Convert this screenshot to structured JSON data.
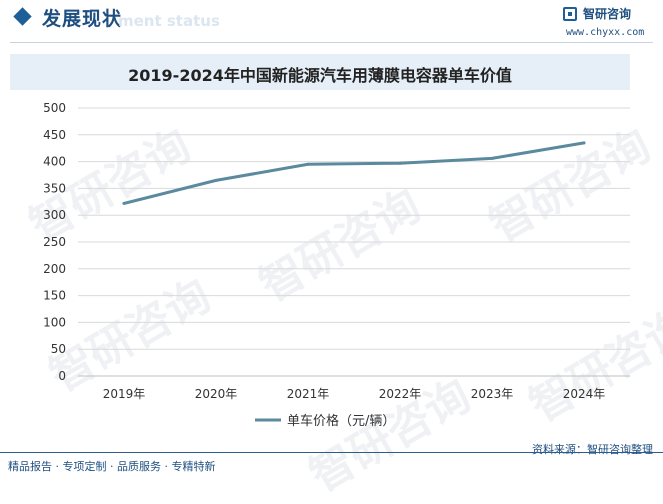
{
  "header": {
    "title": "发展现状",
    "ghost_text": "ment status"
  },
  "brand": {
    "name": "智研咨询",
    "url": "www.chyxx.com"
  },
  "watermark_text": "智研咨询",
  "chart_data": {
    "type": "line",
    "title": "2019-2024年中国新能源汽车用薄膜电容器单车价值",
    "categories": [
      "2019年",
      "2020年",
      "2021年",
      "2022年",
      "2023年",
      "2024年"
    ],
    "series": [
      {
        "name": "单车价格（元/辆）",
        "values": [
          322,
          365,
          395,
          397,
          406,
          435
        ],
        "color": "#5b8a9e"
      }
    ],
    "ylim": [
      0,
      500
    ],
    "yticks": [
      0,
      50,
      100,
      150,
      200,
      250,
      300,
      350,
      400,
      450,
      500
    ],
    "grid": true,
    "legend_position": "bottom"
  },
  "footer": {
    "left": "精品报告 · 专项定制 · 品质服务 · 专精特新",
    "source": "资料来源：智研咨询整理"
  }
}
